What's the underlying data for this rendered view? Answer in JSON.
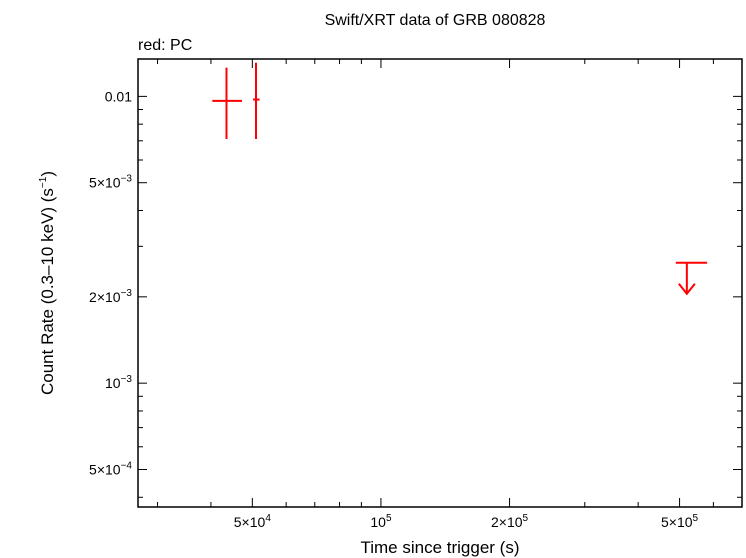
{
  "chart_data": {
    "type": "scatter",
    "title": "Swift/XRT data of GRB 080828",
    "legend_text": "red: PC",
    "xlabel": "Time since trigger (s)",
    "ylabel": "Count Rate (0.3–10 keV) (s",
    "ylabel_sup": "−1",
    "ylabel_end": ")",
    "x_scale": "log",
    "y_scale": "log",
    "xlim": [
      27000,
      700000
    ],
    "ylim": [
      0.00037,
      0.0135
    ],
    "grid": false,
    "colors": {
      "pc": "#ff0000",
      "axis": "#000000"
    },
    "x_ticks": [
      {
        "value": 50000,
        "mant": "5×10",
        "exp": "4"
      },
      {
        "value": 100000,
        "mant": "10",
        "exp": "5"
      },
      {
        "value": 200000,
        "mant": "2×10",
        "exp": "5"
      },
      {
        "value": 500000,
        "mant": "5×10",
        "exp": "5"
      }
    ],
    "y_ticks": [
      {
        "value": 0.0005,
        "mant": "5×10",
        "exp": "−4"
      },
      {
        "value": 0.001,
        "mant": "10",
        "exp": "−3"
      },
      {
        "value": 0.002,
        "mant": "2×10",
        "exp": "−3"
      },
      {
        "value": 0.005,
        "mant": "5×10",
        "exp": "−3"
      },
      {
        "value": 0.01,
        "mant": "0.01",
        "exp": ""
      }
    ],
    "series": [
      {
        "mode": "PC",
        "points": [
          {
            "x": 43500,
            "xlo": 40300,
            "xhi": 47300,
            "y": 0.00965,
            "ylo": 0.0071,
            "yhi": 0.0126
          },
          {
            "x": 51000,
            "xlo": 50200,
            "xhi": 52000,
            "y": 0.00975,
            "ylo": 0.0071,
            "yhi": 0.0131
          }
        ],
        "upper_limits": [
          {
            "x": 520000,
            "xlo": 490000,
            "xhi": 580000,
            "y": 0.00263,
            "arrow_to": 0.00205
          }
        ]
      }
    ]
  }
}
